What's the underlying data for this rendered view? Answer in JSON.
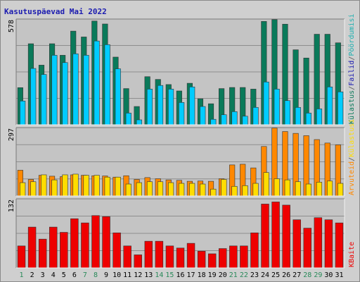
{
  "chart_data": {
    "type": "bar",
    "title": "Kasutuspäevad Mai 2022",
    "categories": [
      "1",
      "2",
      "3",
      "4",
      "5",
      "6",
      "7",
      "8",
      "9",
      "10",
      "11",
      "12",
      "13",
      "14",
      "15",
      "16",
      "17",
      "18",
      "19",
      "20",
      "21",
      "22",
      "23",
      "24",
      "25",
      "26",
      "27",
      "28",
      "29",
      "30",
      "31"
    ],
    "weekend_days": [
      "1",
      "7",
      "8",
      "14",
      "15",
      "21",
      "22",
      "28",
      "29"
    ],
    "colors": {
      "weekday_tick": "#000000",
      "weekend_tick": "#2a8a5a",
      "visits": "#0a7a5a",
      "files": "#00ccff",
      "pages": "#00ccff",
      "hits": "#ff8800",
      "hits_light": "#ffdd00",
      "kbytes": "#ee0000"
    },
    "panels": [
      {
        "id": "visits-files",
        "ymax": 578,
        "ymax_label": "578",
        "series": [
          {
            "name": "Visits",
            "color": "#0a7a5a",
            "values": [
              203,
              443,
              326,
              443,
              380,
              512,
              480,
              567,
              551,
              370,
              198,
              100,
              263,
              248,
              220,
              185,
              227,
              142,
              115,
              198,
              204,
              204,
              195,
              565,
              575,
              550,
              410,
              365,
              495,
              495,
              448
            ]
          },
          {
            "name": "Files",
            "color": "#00ccff",
            "values": [
              130,
              308,
              275,
              380,
              340,
              388,
              380,
              458,
              438,
              306,
              64,
              27,
              195,
              215,
              195,
              122,
              207,
              100,
              30,
              55,
              72,
              47,
              95,
              234,
              195,
              132,
              95,
              64,
              87,
              207,
              180
            ]
          }
        ],
        "legend": [
          {
            "text": "Külastus",
            "color": "#0a7a5a"
          },
          {
            "text": "/",
            "color": "#555555"
          },
          {
            "text": "Failid",
            "color": "#1b1bb0"
          },
          {
            "text": "/",
            "color": "#555555"
          },
          {
            "text": "Pöördumisi",
            "color": "#1fb0b0"
          }
        ]
      },
      {
        "id": "hits",
        "ymax": 297,
        "ymax_label": "297",
        "series": [
          {
            "name": "Hits",
            "color": "#ff8800",
            "values": [
              112,
              72,
              90,
              86,
              84,
              92,
              90,
              88,
              87,
              82,
              88,
              72,
              80,
              75,
              70,
              68,
              64,
              65,
              64,
              75,
              135,
              138,
              122,
              215,
              295,
              280,
              272,
              262,
              245,
              230,
              222
            ]
          },
          {
            "name": "Files",
            "color": "#ffdd00",
            "values": [
              58,
              62,
              92,
              70,
              92,
              95,
              90,
              90,
              82,
              82,
              52,
              58,
              62,
              62,
              58,
              55,
              55,
              52,
              30,
              72,
              42,
              45,
              55,
              102,
              75,
              70,
              62,
              52,
              60,
              65,
              55
            ]
          }
        ],
        "legend": [
          {
            "text": "Arvuteid",
            "color": "#ff8800"
          },
          {
            "text": "/",
            "color": "#555555"
          },
          {
            "text": "Külastusi",
            "color": "#ffdd00"
          }
        ]
      },
      {
        "id": "kbytes",
        "ymax": 132,
        "ymax_label": "132",
        "series": [
          {
            "name": "KBaite",
            "color": "#ee0000",
            "values": [
              42,
              78,
              55,
              78,
              68,
              94,
              86,
              100,
              98,
              67,
              42,
              25,
              51,
              51,
              42,
              38,
              47,
              32,
              27,
              37,
              42,
              42,
              67,
              122,
              126,
              120,
              92,
              76,
              96,
              92,
              86
            ]
          }
        ],
        "legend": [
          {
            "text": "KBaite",
            "color": "#ee0000"
          }
        ]
      }
    ]
  }
}
